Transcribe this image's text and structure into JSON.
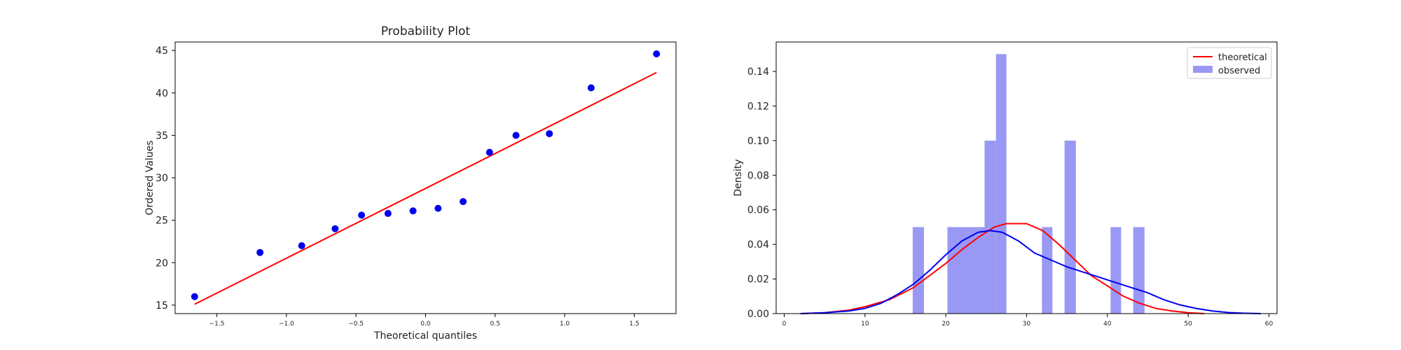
{
  "chart_data": [
    {
      "type": "scatter",
      "title": "Probability Plot",
      "xlabel": "Theoretical quantiles",
      "ylabel": "Ordered Values",
      "xlim": [
        -1.8,
        1.8
      ],
      "ylim": [
        14,
        46
      ],
      "xticks": [
        -1.5,
        -1.0,
        -0.5,
        0.0,
        0.5,
        1.0,
        1.5
      ],
      "xtick_labels": [
        "−1.5",
        "−1.0",
        "−0.5",
        "0.0",
        "0.5",
        "1.0",
        "1.5"
      ],
      "yticks": [
        15,
        20,
        25,
        30,
        35,
        40,
        45
      ],
      "ytick_labels": [
        "15",
        "20",
        "25",
        "30",
        "35",
        "40",
        "45"
      ],
      "points": {
        "x": [
          -1.66,
          -1.19,
          -0.89,
          -0.65,
          -0.46,
          -0.27,
          -0.09,
          0.09,
          0.27,
          0.46,
          0.65,
          0.89,
          1.19,
          1.66
        ],
        "y": [
          16.0,
          21.2,
          22.0,
          24.0,
          25.6,
          25.8,
          26.1,
          26.4,
          27.2,
          33.0,
          35.0,
          35.2,
          40.6,
          44.6
        ],
        "color": "#0000ee"
      },
      "fit_line": {
        "x": [
          -1.66,
          1.66
        ],
        "y": [
          15.1,
          42.4
        ],
        "color": "#ff0000"
      },
      "grid": false
    },
    {
      "type": "histogram",
      "title": "",
      "xlabel": "",
      "ylabel": "Density",
      "xlim": [
        -1,
        61
      ],
      "ylim": [
        0,
        0.157
      ],
      "xticks": [
        0,
        10,
        20,
        30,
        40,
        50,
        60
      ],
      "xtick_labels": [
        "0",
        "10",
        "20",
        "30",
        "40",
        "50",
        "60"
      ],
      "yticks": [
        0.0,
        0.02,
        0.04,
        0.06,
        0.08,
        0.1,
        0.12,
        0.14
      ],
      "ytick_labels": [
        "0.00",
        "0.02",
        "0.04",
        "0.06",
        "0.08",
        "0.10",
        "0.12",
        "0.14"
      ],
      "bars": {
        "label": "observed",
        "color": "#9999f5",
        "bin_edges": [
          15.9,
          17.3,
          20.2,
          24.8,
          26.2,
          27.5,
          31.9,
          33.2,
          34.7,
          36.1,
          40.4,
          41.7,
          43.2,
          44.6
        ],
        "densities": [
          0.05,
          0.0,
          0.05,
          0.1,
          0.15,
          0.0,
          0.05,
          0.0,
          0.1,
          0.0,
          0.05,
          0.0,
          0.05
        ]
      },
      "lines": [
        {
          "name": "theoretical",
          "color": "#ff0000",
          "x": [
            2,
            5,
            8,
            10,
            13,
            16,
            18,
            20,
            22,
            24,
            26,
            27.5,
            29,
            30,
            31,
            32,
            34,
            36,
            38,
            40,
            42,
            44,
            46,
            48,
            50,
            52
          ],
          "y": [
            0.0,
            0.0005,
            0.002,
            0.004,
            0.008,
            0.015,
            0.022,
            0.029,
            0.037,
            0.044,
            0.05,
            0.052,
            0.052,
            0.052,
            0.05,
            0.048,
            0.04,
            0.031,
            0.022,
            0.016,
            0.01,
            0.006,
            0.003,
            0.0015,
            0.0005,
            0.0
          ]
        },
        {
          "name": "kde",
          "color": "#0000ee",
          "x": [
            2,
            5,
            8,
            10,
            12,
            14,
            16,
            18,
            20,
            22,
            24,
            25.5,
            27,
            29,
            31,
            33,
            35,
            37,
            39,
            41,
            43,
            45,
            47,
            49,
            51,
            53,
            55,
            57,
            59
          ],
          "y": [
            0.0,
            0.0005,
            0.0015,
            0.003,
            0.006,
            0.011,
            0.017,
            0.025,
            0.034,
            0.042,
            0.047,
            0.048,
            0.047,
            0.042,
            0.035,
            0.031,
            0.027,
            0.024,
            0.021,
            0.018,
            0.015,
            0.012,
            0.008,
            0.005,
            0.003,
            0.0015,
            0.0006,
            0.0002,
            0.0
          ]
        }
      ],
      "legend": {
        "placement": "top-right",
        "entries": [
          {
            "label": "theoretical",
            "kind": "line",
            "color": "#ff0000"
          },
          {
            "label": "observed",
            "kind": "patch",
            "color": "#9999f5"
          }
        ]
      },
      "grid": false
    }
  ]
}
